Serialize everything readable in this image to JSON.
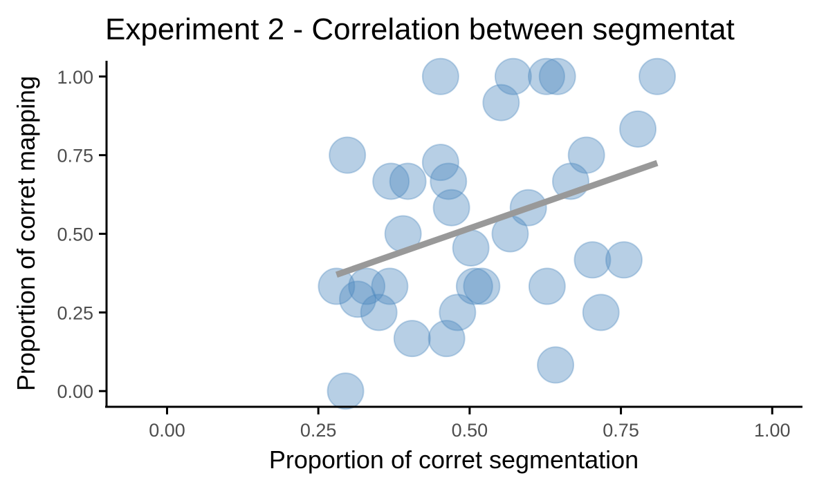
{
  "chart_data": {
    "type": "scatter",
    "title": "Experiment 2 - Correlation between segmentat",
    "xlabel": "Proportion of corret segmentation",
    "ylabel": "Proportion of corret mapping",
    "xlim": [
      -0.1,
      1.05
    ],
    "ylim": [
      -0.05,
      1.05
    ],
    "x_ticks": [
      0.0,
      0.25,
      0.5,
      0.75,
      1.0
    ],
    "x_tick_labels": [
      "0.00",
      "0.25",
      "0.50",
      "0.75",
      "1.00"
    ],
    "y_ticks": [
      0.0,
      0.25,
      0.5,
      0.75,
      1.0
    ],
    "y_tick_labels": [
      "0.00",
      "0.25",
      "0.50",
      "0.75",
      "1.00"
    ],
    "grid": false,
    "point_color": "#4a86bd",
    "trend_color": "#999999",
    "points": [
      {
        "x": 0.295,
        "y": 0.0
      },
      {
        "x": 0.28,
        "y": 0.333
      },
      {
        "x": 0.315,
        "y": 0.292
      },
      {
        "x": 0.33,
        "y": 0.333
      },
      {
        "x": 0.35,
        "y": 0.25
      },
      {
        "x": 0.368,
        "y": 0.333
      },
      {
        "x": 0.298,
        "y": 0.75
      },
      {
        "x": 0.37,
        "y": 0.667
      },
      {
        "x": 0.398,
        "y": 0.667
      },
      {
        "x": 0.39,
        "y": 0.5
      },
      {
        "x": 0.405,
        "y": 0.167
      },
      {
        "x": 0.452,
        "y": 1.0
      },
      {
        "x": 0.452,
        "y": 0.727
      },
      {
        "x": 0.465,
        "y": 0.667
      },
      {
        "x": 0.47,
        "y": 0.583
      },
      {
        "x": 0.462,
        "y": 0.167
      },
      {
        "x": 0.48,
        "y": 0.25
      },
      {
        "x": 0.502,
        "y": 0.455
      },
      {
        "x": 0.508,
        "y": 0.333
      },
      {
        "x": 0.52,
        "y": 0.333
      },
      {
        "x": 0.552,
        "y": 0.917
      },
      {
        "x": 0.572,
        "y": 1.0
      },
      {
        "x": 0.567,
        "y": 0.5
      },
      {
        "x": 0.597,
        "y": 0.583
      },
      {
        "x": 0.627,
        "y": 1.0
      },
      {
        "x": 0.645,
        "y": 1.0
      },
      {
        "x": 0.628,
        "y": 0.333
      },
      {
        "x": 0.642,
        "y": 0.083
      },
      {
        "x": 0.667,
        "y": 0.667
      },
      {
        "x": 0.693,
        "y": 0.75
      },
      {
        "x": 0.703,
        "y": 0.417
      },
      {
        "x": 0.717,
        "y": 0.25
      },
      {
        "x": 0.755,
        "y": 0.417
      },
      {
        "x": 0.778,
        "y": 0.833
      },
      {
        "x": 0.81,
        "y": 1.0
      }
    ],
    "trend_line": {
      "x": [
        0.28,
        0.81
      ],
      "y": [
        0.37,
        0.725
      ]
    }
  }
}
